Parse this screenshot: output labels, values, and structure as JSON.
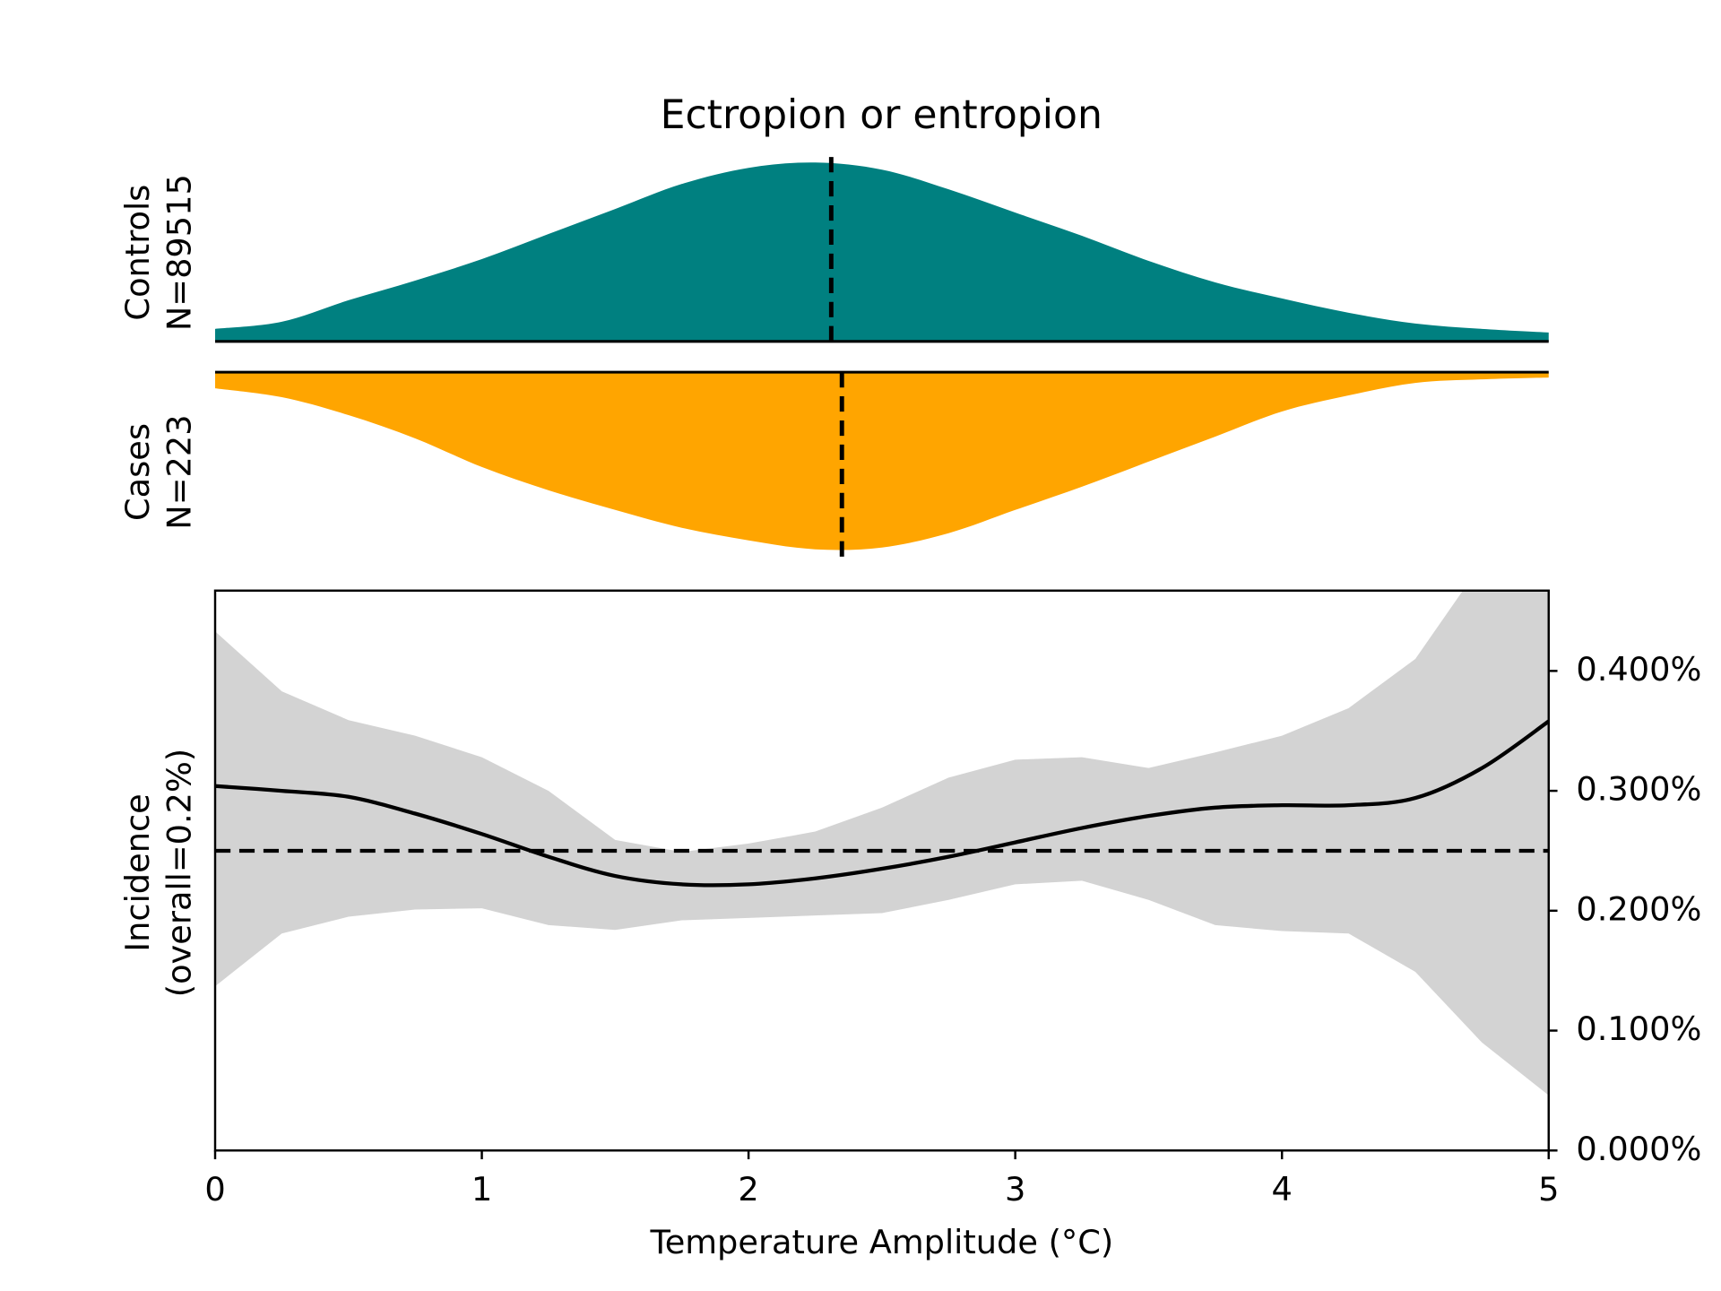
{
  "chart_data": [
    {
      "type": "density",
      "title": "Ectropion or entropion",
      "ylabel": [
        "Controls",
        "N=89515"
      ],
      "direction": "up",
      "color": "#008080",
      "x": [
        0,
        0.25,
        0.5,
        0.75,
        1,
        1.25,
        1.5,
        1.75,
        2,
        2.25,
        2.5,
        2.75,
        3,
        3.25,
        3.5,
        3.75,
        4,
        4.25,
        4.5,
        4.75,
        5
      ],
      "values": [
        0.07,
        0.11,
        0.23,
        0.34,
        0.46,
        0.6,
        0.74,
        0.88,
        0.97,
        1.0,
        0.96,
        0.85,
        0.72,
        0.59,
        0.45,
        0.33,
        0.24,
        0.16,
        0.1,
        0.07,
        0.05
      ],
      "mean": 2.31,
      "xlim": [
        0,
        5
      ],
      "ylim": [
        0,
        1
      ]
    },
    {
      "type": "density",
      "ylabel": [
        "Cases",
        "N=223"
      ],
      "direction": "down",
      "color": "#ffa500",
      "x": [
        0,
        0.25,
        0.5,
        0.75,
        1,
        1.25,
        1.5,
        1.75,
        2,
        2.25,
        2.5,
        2.75,
        3,
        3.25,
        3.5,
        3.75,
        4,
        4.25,
        4.5,
        4.75,
        5
      ],
      "values": [
        0.09,
        0.14,
        0.24,
        0.37,
        0.53,
        0.66,
        0.77,
        0.87,
        0.94,
        0.99,
        0.98,
        0.9,
        0.77,
        0.64,
        0.5,
        0.36,
        0.22,
        0.13,
        0.06,
        0.04,
        0.03
      ],
      "mean": 2.35,
      "xlim": [
        0,
        5
      ],
      "ylim": [
        0,
        1
      ]
    },
    {
      "type": "line",
      "xlabel": "Temperature Amplitude (°C)",
      "ylabel": [
        "Incidence",
        "(overall=0.2%)"
      ],
      "color": "#000000",
      "band_color": "#d3d3d3",
      "x": [
        0,
        0.25,
        0.5,
        0.75,
        1,
        1.25,
        1.5,
        1.75,
        2,
        2.25,
        2.5,
        2.75,
        3,
        3.25,
        3.5,
        3.75,
        4,
        4.25,
        4.5,
        4.75,
        5
      ],
      "values": [
        0.304,
        0.3,
        0.295,
        0.281,
        0.264,
        0.245,
        0.229,
        0.222,
        0.222,
        0.227,
        0.235,
        0.245,
        0.257,
        0.269,
        0.279,
        0.286,
        0.288,
        0.288,
        0.294,
        0.319,
        0.358
      ],
      "band_upper": [
        0.433,
        0.383,
        0.359,
        0.346,
        0.328,
        0.3,
        0.259,
        0.249,
        0.256,
        0.266,
        0.286,
        0.311,
        0.326,
        0.328,
        0.319,
        0.332,
        0.346,
        0.369,
        0.41,
        0.49,
        0.56
      ],
      "band_lower": [
        0.137,
        0.181,
        0.195,
        0.201,
        0.202,
        0.188,
        0.184,
        0.192,
        0.194,
        0.196,
        0.198,
        0.209,
        0.222,
        0.225,
        0.209,
        0.188,
        0.183,
        0.181,
        0.149,
        0.09,
        0.046
      ],
      "reference": 0.25,
      "xlim": [
        0,
        5
      ],
      "xticks": [
        0,
        1,
        2,
        3,
        4,
        5
      ],
      "ylim": [
        0,
        0.467
      ],
      "yticks": [
        {
          "value": 0,
          "label": "0.000%"
        },
        {
          "value": 0.1,
          "label": "0.100%"
        },
        {
          "value": 0.2,
          "label": "0.200%"
        },
        {
          "value": 0.3,
          "label": "0.300%"
        },
        {
          "value": 0.4,
          "label": "0.400%"
        }
      ]
    }
  ]
}
